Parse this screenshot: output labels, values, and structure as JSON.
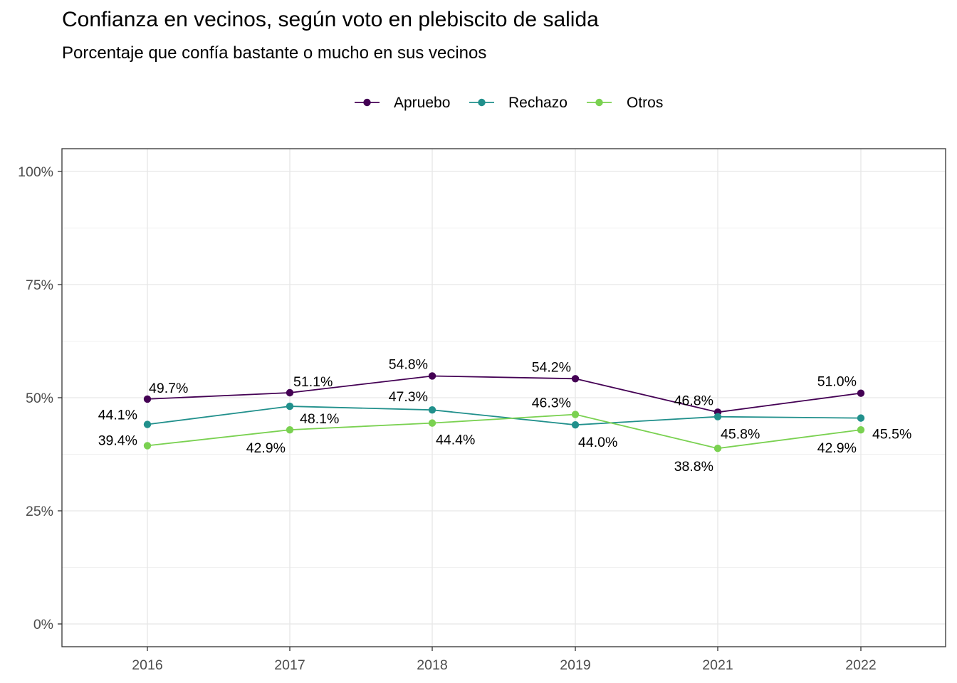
{
  "chart_data": {
    "type": "line",
    "title": "Confianza en vecinos, según voto en plebiscito de salida",
    "subtitle": "Porcentaje que confía bastante o mucho en sus vecinos",
    "xlabel": "",
    "ylabel": "",
    "categories": [
      "2016",
      "2017",
      "2018",
      "2019",
      "2021",
      "2022"
    ],
    "ylim": [
      0,
      1
    ],
    "y_ticks": [
      0,
      0.25,
      0.5,
      0.75,
      1.0
    ],
    "y_tick_labels": [
      "0%",
      "25%",
      "50%",
      "75%",
      "100%"
    ],
    "grid": true,
    "legend_position": "top",
    "series": [
      {
        "name": "Apruebo",
        "color": "#440154",
        "values": [
          0.497,
          0.511,
          0.548,
          0.542,
          0.468,
          0.51
        ],
        "labels": [
          "49.7%",
          "51.1%",
          "54.8%",
          "54.2%",
          "46.8%",
          "51.0%"
        ]
      },
      {
        "name": "Rechazo",
        "color": "#21908C",
        "values": [
          0.441,
          0.481,
          0.473,
          0.44,
          0.458,
          0.455
        ],
        "labels": [
          "44.1%",
          "48.1%",
          "47.3%",
          "44.0%",
          "45.8%",
          "45.5%"
        ]
      },
      {
        "name": "Otros",
        "color": "#7AD151",
        "values": [
          0.394,
          0.429,
          0.444,
          0.463,
          0.388,
          0.429
        ],
        "labels": [
          "39.4%",
          "42.9%",
          "44.4%",
          "46.3%",
          "38.8%",
          "42.9%"
        ]
      }
    ]
  }
}
